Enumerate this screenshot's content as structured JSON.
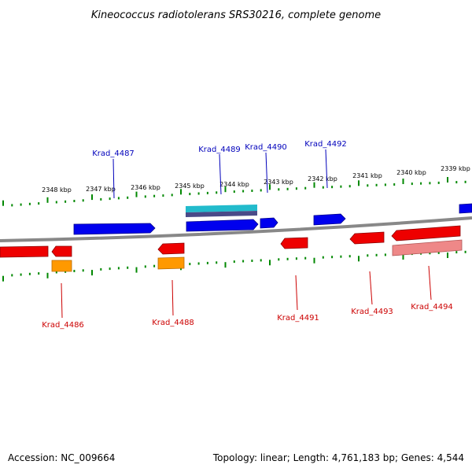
{
  "title": "Kineococcus radiotolerans SRS30216, complete genome",
  "footer": {
    "accession": "Accession: NC_009664",
    "summary": "Topology: linear; Length: 4,761,183 bp; Genes: 4,544"
  },
  "colors": {
    "forward_gene": "#0000ee",
    "reverse_gene": "#ee0000",
    "orange_feature": "#ff9900",
    "cyan_feature": "#22bbcc",
    "pink_feature": "#ee8888",
    "backbone": "#888888",
    "tick": "#008800",
    "forward_label": "#0000bb",
    "reverse_label": "#cc0000"
  },
  "scale_labels": [
    "2348 kbp",
    "2347 kbp",
    "2346 kbp",
    "2345 kbp",
    "2344 kbp",
    "2343 kbp",
    "2342 kbp",
    "2341 kbp",
    "2340 kbp",
    "2339 kbp"
  ],
  "forward_labels": [
    "Krad_4487",
    "Krad_4489",
    "Krad_4490",
    "Krad_4492"
  ],
  "reverse_labels": [
    "Krad_4486",
    "Krad_4488",
    "Krad_4491",
    "Krad_4493",
    "Krad_4494"
  ]
}
